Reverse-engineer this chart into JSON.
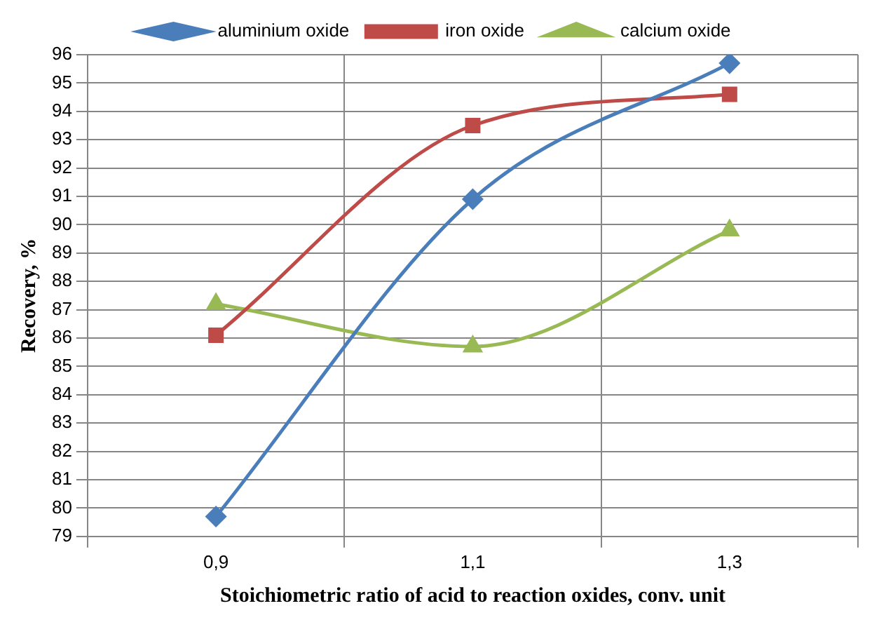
{
  "chart_data": {
    "type": "line",
    "xlabel": "Stoichiometric ratio of acid to reaction oxides, conv. unit",
    "ylabel": "Recovery, %",
    "categories": [
      "0,9",
      "1,1",
      "1,3"
    ],
    "series": [
      {
        "name": "aluminium oxide",
        "color": "#4a7ebb",
        "values": [
          79.7,
          90.9,
          95.7
        ],
        "marker": "diamond"
      },
      {
        "name": "iron oxide",
        "color": "#be4b48",
        "values": [
          86.1,
          93.5,
          94.6
        ],
        "marker": "square"
      },
      {
        "name": "calcium oxide",
        "color": "#98b954",
        "values": [
          87.2,
          85.7,
          89.8
        ],
        "marker": "triangle"
      }
    ],
    "ylim": [
      79,
      96
    ],
    "yticks": [
      79,
      80,
      81,
      82,
      83,
      84,
      85,
      86,
      87,
      88,
      89,
      90,
      91,
      92,
      93,
      94,
      95,
      96
    ],
    "grid": true,
    "legend": "top"
  }
}
